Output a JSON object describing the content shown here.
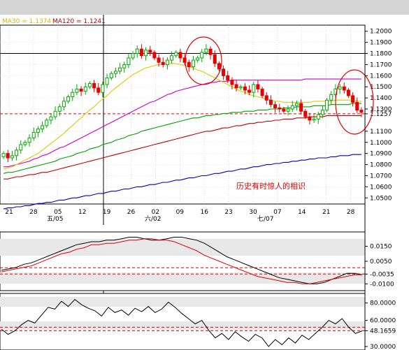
{
  "chart_data": [
    {
      "type": "candlestick",
      "header": {
        "ma30_label": "MA30 = 1.1374",
        "ma120_label": "MA120 = 1.1241"
      },
      "y_ticks": [
        "1.2000",
        "1.1900",
        "1.1800",
        "1.1700",
        "1.1600",
        "1.1500",
        "1.1400",
        "1.1300",
        "1.1257",
        "1.1100",
        "1.1000",
        "1.0900",
        "1.0800",
        "1.0700",
        "1.0600",
        "1.0500"
      ],
      "y_tick_values": [
        1.2,
        1.19,
        1.18,
        1.17,
        1.16,
        1.15,
        1.14,
        1.13,
        1.1257,
        1.11,
        1.1,
        1.09,
        1.08,
        1.07,
        1.06,
        1.05
      ],
      "highlighted_ticks": {
        "1.1800": "#0000ff",
        "1.1257": "#e60000"
      },
      "ylim": [
        1.0445,
        1.2055
      ],
      "x_ticks": [
        "21",
        "28",
        "05",
        "12",
        "19",
        "26",
        "02",
        "09",
        "16",
        "23",
        "30",
        "07",
        "14",
        "21",
        "28"
      ],
      "month_labels": [
        "五/05",
        "六/02",
        "七/07"
      ],
      "annotation": "历史有时惊人的相识",
      "horizontal_black_line": 1.18,
      "horizontal_red_dashed_line": 1.1257,
      "series": {
        "candles_close": [
          1.09,
          1.086,
          1.088,
          1.093,
          1.098,
          1.1,
          1.104,
          1.109,
          1.112,
          1.115,
          1.12,
          1.123,
          1.128,
          1.132,
          1.137,
          1.141,
          1.145,
          1.148,
          1.146,
          1.15,
          1.153,
          1.149,
          1.145,
          1.152,
          1.158,
          1.162,
          1.164,
          1.167,
          1.17,
          1.176,
          1.18,
          1.184,
          1.178,
          1.183,
          1.181,
          1.176,
          1.172,
          1.17,
          1.174,
          1.178,
          1.181,
          1.176,
          1.172,
          1.168,
          1.174,
          1.176,
          1.181,
          1.184,
          1.179,
          1.171,
          1.166,
          1.16,
          1.156,
          1.152,
          1.149,
          1.15,
          1.147,
          1.145,
          1.152,
          1.148,
          1.142,
          1.138,
          1.134,
          1.131,
          1.13,
          1.128,
          1.13,
          1.133,
          1.135,
          1.128,
          1.123,
          1.12,
          1.121,
          1.125,
          1.129,
          1.138,
          1.143,
          1.148,
          1.15,
          1.147,
          1.142,
          1.136,
          1.129,
          1.127
        ],
        "ma30": [
          1.076,
          1.077,
          1.078,
          1.08,
          1.082,
          1.084,
          1.086,
          1.088,
          1.09,
          1.093,
          1.096,
          1.099,
          1.102,
          1.105,
          1.108,
          1.112,
          1.115,
          1.119,
          1.122,
          1.126,
          1.129,
          1.132,
          1.136,
          1.139,
          1.142,
          1.146,
          1.149,
          1.152,
          1.155,
          1.158,
          1.161,
          1.163,
          1.165,
          1.167,
          1.168,
          1.169,
          1.17,
          1.17,
          1.171,
          1.171,
          1.171,
          1.17,
          1.169,
          1.168,
          1.167,
          1.165,
          1.164,
          1.162,
          1.16,
          1.158,
          1.156,
          1.154,
          1.152,
          1.15,
          1.148,
          1.146,
          1.145,
          1.143,
          1.142,
          1.141,
          1.14,
          1.139,
          1.138,
          1.137,
          1.137,
          1.136,
          1.136,
          1.136,
          1.136,
          1.136,
          1.136,
          1.136,
          1.137,
          1.137,
          1.137,
          1.137,
          1.137,
          1.138,
          1.138,
          1.138,
          1.138,
          1.138,
          1.137,
          1.137
        ],
        "ma60": [
          1.078,
          1.078,
          1.079,
          1.08,
          1.081,
          1.082,
          1.083,
          1.085,
          1.086,
          1.088,
          1.089,
          1.091,
          1.093,
          1.095,
          1.096,
          1.098,
          1.1,
          1.102,
          1.104,
          1.106,
          1.108,
          1.11,
          1.112,
          1.114,
          1.116,
          1.118,
          1.12,
          1.122,
          1.124,
          1.126,
          1.128,
          1.13,
          1.132,
          1.134,
          1.136,
          1.137,
          1.139,
          1.141,
          1.143,
          1.144,
          1.146,
          1.147,
          1.148,
          1.149,
          1.15,
          1.151,
          1.152,
          1.153,
          1.154,
          1.154,
          1.155,
          1.155,
          1.155,
          1.156,
          1.156,
          1.156,
          1.156,
          1.156,
          1.156,
          1.156,
          1.156,
          1.156,
          1.156,
          1.156,
          1.156,
          1.156,
          1.156,
          1.156,
          1.156,
          1.156,
          1.157,
          1.157,
          1.157,
          1.157,
          1.157,
          1.157,
          1.157,
          1.157,
          1.157,
          1.157,
          1.157,
          1.157,
          1.157,
          1.157
        ],
        "ma90": [
          1.072,
          1.073,
          1.073,
          1.074,
          1.075,
          1.076,
          1.077,
          1.078,
          1.079,
          1.08,
          1.081,
          1.082,
          1.083,
          1.085,
          1.086,
          1.087,
          1.088,
          1.09,
          1.091,
          1.092,
          1.094,
          1.095,
          1.096,
          1.098,
          1.099,
          1.1,
          1.102,
          1.103,
          1.104,
          1.106,
          1.107,
          1.108,
          1.11,
          1.111,
          1.112,
          1.113,
          1.114,
          1.115,
          1.116,
          1.117,
          1.118,
          1.119,
          1.12,
          1.121,
          1.122,
          1.122,
          1.123,
          1.124,
          1.124,
          1.125,
          1.125,
          1.126,
          1.126,
          1.127,
          1.127,
          1.127,
          1.128,
          1.128,
          1.128,
          1.129,
          1.129,
          1.129,
          1.13,
          1.13,
          1.13,
          1.131,
          1.131,
          1.131,
          1.132,
          1.132,
          1.132,
          1.132,
          1.133,
          1.133,
          1.133,
          1.133,
          1.134,
          1.134,
          1.134,
          1.134,
          1.134,
          1.135,
          1.135,
          1.135
        ],
        "ma120": [
          1.067,
          1.067,
          1.068,
          1.069,
          1.069,
          1.07,
          1.071,
          1.071,
          1.072,
          1.073,
          1.073,
          1.074,
          1.075,
          1.076,
          1.077,
          1.078,
          1.079,
          1.08,
          1.081,
          1.082,
          1.083,
          1.084,
          1.085,
          1.086,
          1.087,
          1.088,
          1.089,
          1.09,
          1.091,
          1.092,
          1.093,
          1.094,
          1.095,
          1.096,
          1.097,
          1.098,
          1.099,
          1.1,
          1.101,
          1.102,
          1.103,
          1.104,
          1.105,
          1.106,
          1.107,
          1.108,
          1.109,
          1.11,
          1.11,
          1.111,
          1.112,
          1.113,
          1.113,
          1.114,
          1.115,
          1.115,
          1.116,
          1.117,
          1.117,
          1.118,
          1.118,
          1.119,
          1.119,
          1.12,
          1.12,
          1.121,
          1.121,
          1.121,
          1.122,
          1.122,
          1.122,
          1.123,
          1.123,
          1.123,
          1.123,
          1.124,
          1.124,
          1.124,
          1.124,
          1.124,
          1.124,
          1.124,
          1.124,
          1.124
        ],
        "ma240": [
          1.04,
          1.041,
          1.041,
          1.042,
          1.042,
          1.043,
          1.043,
          1.044,
          1.045,
          1.045,
          1.046,
          1.046,
          1.047,
          1.048,
          1.048,
          1.049,
          1.05,
          1.05,
          1.051,
          1.052,
          1.052,
          1.053,
          1.054,
          1.054,
          1.055,
          1.056,
          1.056,
          1.057,
          1.058,
          1.058,
          1.059,
          1.06,
          1.06,
          1.061,
          1.062,
          1.062,
          1.063,
          1.064,
          1.064,
          1.065,
          1.066,
          1.066,
          1.067,
          1.068,
          1.068,
          1.069,
          1.07,
          1.07,
          1.071,
          1.072,
          1.072,
          1.073,
          1.074,
          1.074,
          1.075,
          1.076,
          1.076,
          1.077,
          1.078,
          1.078,
          1.079,
          1.08,
          1.08,
          1.081,
          1.081,
          1.082,
          1.082,
          1.083,
          1.083,
          1.084,
          1.084,
          1.085,
          1.085,
          1.086,
          1.086,
          1.086,
          1.087,
          1.087,
          1.088,
          1.088,
          1.088,
          1.089,
          1.089,
          1.089
        ]
      },
      "series_colors": {
        "candles_up": "#00aa00",
        "candles_down": "#e60000",
        "ma30": "#e0c800",
        "ma60": "#cc00cc",
        "ma90": "#00a000",
        "ma120": "#c00000",
        "ma240": "#0000c0"
      }
    },
    {
      "type": "line",
      "panel": "oscillator",
      "y_ticks": [
        "0.0150",
        "0.0050",
        "-0.0035",
        "-0.0100"
      ],
      "y_tick_values": [
        0.015,
        0.005,
        -0.0035,
        -0.01
      ],
      "highlighted_ticks": {
        "-0.0035": "#e60000"
      },
      "ylim": [
        -0.0145,
        0.0245
      ],
      "series": [
        {
          "color": "#000000",
          "values": [
            -0.001,
            0.0,
            0.001,
            0.003,
            0.004,
            0.006,
            0.008,
            0.01,
            0.012,
            0.014,
            0.016,
            0.017,
            0.018,
            0.018,
            0.019,
            0.019,
            0.02,
            0.021,
            0.021,
            0.02,
            0.019,
            0.019,
            0.02,
            0.021,
            0.021,
            0.02,
            0.019,
            0.017,
            0.014,
            0.011,
            0.008,
            0.006,
            0.004,
            0.002,
            0.0,
            -0.002,
            -0.004,
            -0.006,
            -0.007,
            -0.008,
            -0.009,
            -0.01,
            -0.01,
            -0.009,
            -0.007,
            -0.005,
            -0.003,
            -0.003,
            -0.004
          ]
        },
        {
          "color": "#e60000",
          "values": [
            -0.002,
            -0.001,
            0.0,
            0.001,
            0.002,
            0.004,
            0.006,
            0.008,
            0.01,
            0.011,
            0.013,
            0.014,
            0.016,
            0.016,
            0.017,
            0.017,
            0.018,
            0.019,
            0.019,
            0.02,
            0.02,
            0.019,
            0.019,
            0.018,
            0.016,
            0.014,
            0.012,
            0.009,
            0.007,
            0.005,
            0.003,
            0.001,
            -0.001,
            -0.003,
            -0.005,
            -0.006,
            -0.007,
            -0.008,
            -0.009,
            -0.009,
            -0.01,
            -0.01,
            -0.009,
            -0.008,
            -0.007,
            -0.006,
            -0.005,
            -0.004,
            -0.004
          ]
        }
      ]
    },
    {
      "type": "line",
      "panel": "oscillator",
      "y_ticks": [
        "80.0000",
        "60.0000",
        "48.1659",
        "30.0000"
      ],
      "y_tick_values": [
        80,
        60,
        48.1659,
        30
      ],
      "highlighted_ticks": {
        "48.1659": "#e60000"
      },
      "ylim": [
        26,
        91
      ],
      "series": [
        {
          "color": "#000000",
          "values": [
            50,
            44,
            48,
            55,
            60,
            57,
            66,
            75,
            73,
            82,
            76,
            84,
            78,
            74,
            71,
            65,
            75,
            69,
            72,
            66,
            74,
            70,
            76,
            69,
            73,
            81,
            75,
            68,
            62,
            56,
            60,
            49,
            40,
            45,
            38,
            47,
            41,
            36,
            44,
            40,
            30,
            38,
            32,
            40,
            34,
            43,
            38,
            45,
            52,
            60,
            56,
            62,
            52,
            45,
            48
          ]
        }
      ]
    }
  ]
}
